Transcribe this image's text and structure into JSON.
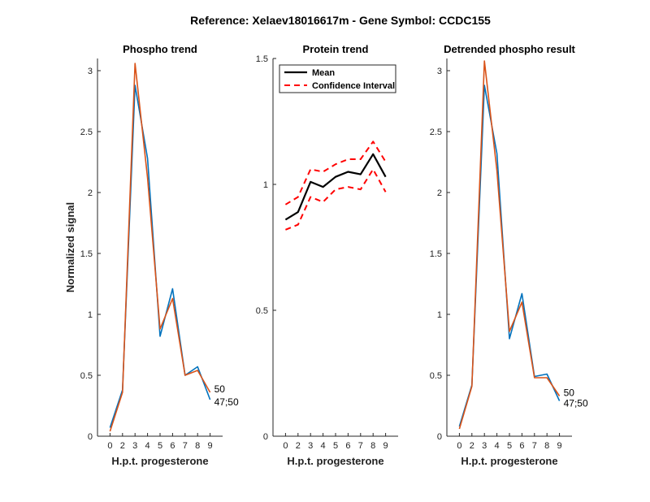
{
  "suptitle": "Reference:  Xelaev18016617m - Gene Symbol:  CCDC155",
  "colors": {
    "blue": "#0072bd",
    "orange": "#d95319",
    "black": "#000000",
    "red": "#ff0000"
  },
  "chart_data": [
    {
      "type": "line",
      "title": "Phospho trend",
      "xlabel": "H.p.t. progesterone",
      "ylabel": "Normalized signal",
      "x_ticks": [
        "0",
        "2",
        "3",
        "4",
        "5",
        "6",
        "7",
        "8",
        "9"
      ],
      "xlim": [
        0,
        10
      ],
      "ylim": [
        0,
        3.1
      ],
      "y_ticks": [
        0,
        0.5,
        1,
        1.5,
        2,
        2.5,
        3
      ],
      "y_tick_labels": [
        "0",
        "0.5",
        "1",
        "1.5",
        "2",
        "2.5",
        "3"
      ],
      "series": [
        {
          "color": "blue",
          "values": [
            0.07,
            0.38,
            2.88,
            2.28,
            0.82,
            1.21,
            0.5,
            0.57,
            0.3
          ],
          "end_label": "47;50"
        },
        {
          "color": "orange",
          "values": [
            0.04,
            0.36,
            3.06,
            2.12,
            0.88,
            1.13,
            0.5,
            0.54,
            0.36
          ],
          "end_label": "50"
        }
      ]
    },
    {
      "type": "line",
      "title": "Protein trend",
      "xlabel": "H.p.t. progesterone",
      "ylabel": "",
      "x_ticks": [
        "0",
        "2",
        "3",
        "4",
        "5",
        "6",
        "7",
        "8",
        "9"
      ],
      "xlim": [
        0,
        10
      ],
      "ylim": [
        0,
        1.5
      ],
      "y_ticks": [
        0,
        0.5,
        1,
        1.5
      ],
      "y_tick_labels": [
        "0",
        "0.5",
        "1",
        "1.5"
      ],
      "legend": {
        "position": "top-left",
        "entries": [
          "Mean",
          "Confidence Interval"
        ]
      },
      "series": [
        {
          "name": "Mean",
          "color": "black",
          "dashed": false,
          "values": [
            0.86,
            0.89,
            1.01,
            0.99,
            1.03,
            1.05,
            1.04,
            1.12,
            1.03
          ]
        },
        {
          "name": "Confidence Interval",
          "color": "red",
          "dashed": true,
          "values": [
            0.92,
            0.95,
            1.06,
            1.05,
            1.08,
            1.1,
            1.1,
            1.17,
            1.09
          ]
        },
        {
          "name": "Confidence Interval",
          "color": "red",
          "dashed": true,
          "legend": false,
          "values": [
            0.82,
            0.84,
            0.95,
            0.93,
            0.98,
            0.99,
            0.98,
            1.06,
            0.97
          ]
        }
      ]
    },
    {
      "type": "line",
      "title": "Detrended phospho result",
      "xlabel": "H.p.t. progesterone",
      "ylabel": "",
      "x_ticks": [
        "0",
        "2",
        "3",
        "4",
        "5",
        "6",
        "7",
        "8",
        "9"
      ],
      "xlim": [
        0,
        10
      ],
      "ylim": [
        0,
        3.1
      ],
      "y_ticks": [
        0,
        0.5,
        1,
        1.5,
        2,
        2.5,
        3
      ],
      "y_tick_labels": [
        "0",
        "0.5",
        "1",
        "1.5",
        "2",
        "2.5",
        "3"
      ],
      "series": [
        {
          "color": "blue",
          "values": [
            0.08,
            0.42,
            2.88,
            2.32,
            0.8,
            1.17,
            0.49,
            0.51,
            0.29
          ],
          "end_label": "47;50"
        },
        {
          "color": "orange",
          "values": [
            0.06,
            0.41,
            3.08,
            2.18,
            0.86,
            1.1,
            0.48,
            0.48,
            0.33
          ],
          "end_label": "50"
        }
      ]
    }
  ]
}
